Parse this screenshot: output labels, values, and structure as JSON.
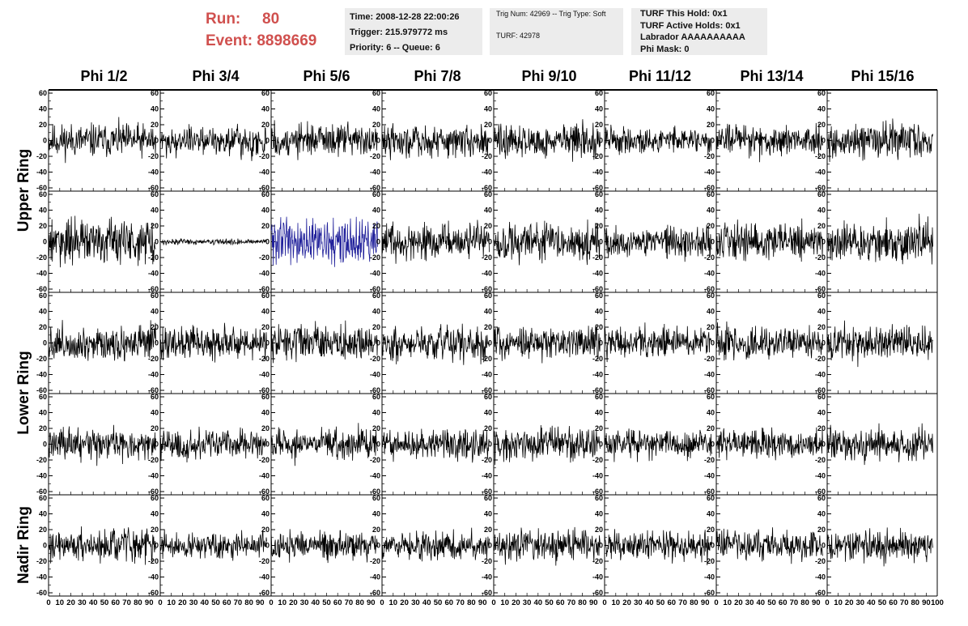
{
  "header": {
    "run_label": "Run:",
    "run_value": "80",
    "event_label": "Event:",
    "event_value": "8898669",
    "time": "Time: 2008-12-28 22:00:26",
    "trigger": "Trigger: 215.979772 ms",
    "priority": "Priority: 6 -- Queue: 6",
    "trig_num": "Trig Num: 42969 -- Trig Type: Soft",
    "turf": "TURF: 42978",
    "turf_this_hold": "TURF This Hold: 0x1",
    "turf_active_holds": "TURF Active Holds: 0x1",
    "labrador": "Labrador AAAAAAAAAA",
    "phi_mask": "Phi Mask: 0"
  },
  "chart_data": {
    "type": "line",
    "columns": [
      "Phi 1/2",
      "Phi 3/4",
      "Phi 5/6",
      "Phi 7/8",
      "Phi 9/10",
      "Phi 11/12",
      "Phi 13/14",
      "Phi 15/16"
    ],
    "ring_labels": [
      "Upper Ring",
      "Lower Ring",
      "Nadir Ring"
    ],
    "xlim": [
      0,
      100
    ],
    "ylim": [
      -60,
      60
    ],
    "y_ticks": [
      60,
      40,
      20,
      0,
      -20,
      -40,
      -60
    ],
    "x_tick_labels": [
      "0",
      "10",
      "20",
      "30",
      "40",
      "50",
      "60",
      "70",
      "80",
      "90",
      "100"
    ],
    "trace_color": "#000000",
    "highlight_color": "#1f1f9a",
    "highlight_panel": {
      "row": 2,
      "column": 3
    },
    "rows": [
      {
        "ring": "Upper Ring",
        "amplitudes": [
          13,
          12,
          13,
          12,
          13,
          10,
          12,
          13
        ]
      },
      {
        "ring": "Upper Ring",
        "amplitudes": [
          17,
          2,
          18,
          14,
          15,
          13,
          14,
          16
        ]
      },
      {
        "ring": "Lower Ring",
        "amplitudes": [
          14,
          12,
          14,
          13,
          12,
          12,
          13,
          13
        ]
      },
      {
        "ring": "Lower Ring",
        "amplitudes": [
          12,
          11,
          12,
          12,
          13,
          11,
          11,
          13
        ]
      },
      {
        "ring": "Nadir Ring",
        "amplitudes": [
          12,
          10,
          11,
          11,
          12,
          11,
          11,
          12
        ]
      }
    ]
  }
}
